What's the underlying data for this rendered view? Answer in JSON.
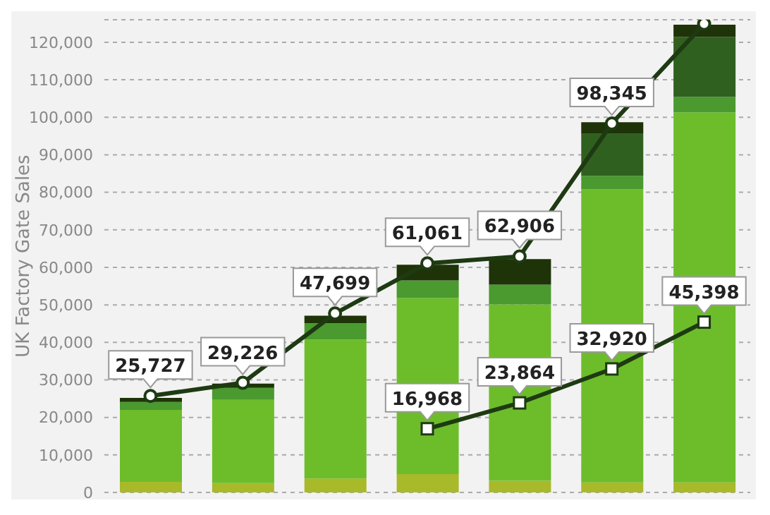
{
  "chart_data": {
    "type": "bar",
    "ylabel": "UK Factory Gate Sales",
    "categories": [
      null,
      null,
      null,
      null,
      null,
      null,
      null
    ],
    "stacked": true,
    "grid": "y",
    "tick_labels": "y",
    "ylim": [
      0,
      126000
    ],
    "yticks": [
      0,
      {
        "value": 10000,
        "label": "10,000"
      },
      {
        "value": 20000,
        "label": "20,000"
      },
      {
        "value": 30000,
        "label": "30,000"
      },
      {
        "value": 40000,
        "label": "40,000"
      },
      {
        "value": 50000,
        "label": "50,000"
      },
      {
        "value": 60000,
        "label": "60,000"
      },
      {
        "value": 70000,
        "label": "70,000"
      },
      {
        "value": 80000,
        "label": "80,000"
      },
      {
        "value": 90000,
        "label": "90,000"
      },
      {
        "value": 100000,
        "label": "100,000"
      },
      {
        "value": 110000,
        "label": "110,000"
      },
      {
        "value": 120000,
        "label": "120,000"
      }
    ],
    "series": [
      {
        "color": "#a8b92a",
        "values": [
          2800,
          2500,
          3700,
          4900,
          3100,
          2700,
          2700
        ]
      },
      {
        "color": "#6dbd2b",
        "values": [
          19200,
          22200,
          37000,
          46900,
          47000,
          78100,
          98600
        ]
      },
      {
        "color": "#4a9a2f",
        "values": [
          2100,
          3200,
          4400,
          4700,
          5300,
          3600,
          4100
        ]
      },
      {
        "color": "#30601f",
        "values": [
          0,
          0,
          0,
          0,
          0,
          11200,
          16000
        ]
      },
      {
        "color": "#1e3308",
        "values": [
          1100,
          1100,
          2000,
          4200,
          6800,
          3100,
          3300
        ]
      },
      {
        "type": "line",
        "color": "#1e3a12",
        "marker": "circle",
        "values": [
          25727,
          29226,
          47699,
          61061,
          62906,
          98345,
          124900
        ],
        "value_labels": [
          "25,727",
          "29,226",
          "47,699",
          "61,061",
          "62,906",
          "98,345",
          null
        ]
      },
      {
        "type": "line",
        "color": "#1e3a12",
        "marker": "square",
        "values": [
          null,
          null,
          null,
          16968,
          23864,
          32920,
          45398
        ],
        "value_labels": [
          null,
          null,
          null,
          "16,968",
          "23,864",
          "32,920",
          "45,398"
        ]
      }
    ]
  }
}
